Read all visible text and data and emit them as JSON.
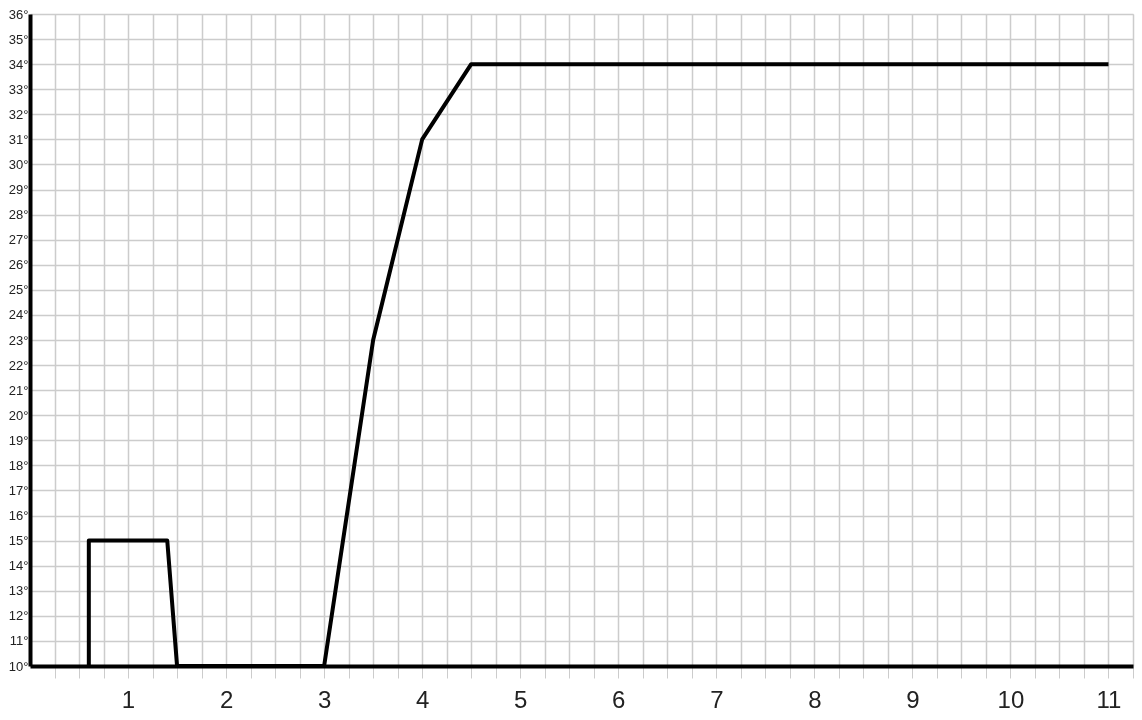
{
  "chart_data": {
    "type": "line",
    "x": [
      0.6,
      0.6,
      1.4,
      1.5,
      3,
      3.5,
      4,
      4.5,
      11
    ],
    "series": [
      {
        "color": "#000000",
        "values": [
          10,
          15,
          15,
          10,
          10,
          23,
          31,
          34,
          34
        ]
      }
    ],
    "xlim": [
      0,
      11.25
    ],
    "ylim": [
      10,
      36
    ],
    "xticks": [
      {
        "value": 0.25,
        "label": null
      },
      {
        "value": 0.5,
        "label": null
      },
      {
        "value": 0.75,
        "label": null
      },
      1,
      {
        "value": 1.25,
        "label": null
      },
      {
        "value": 1.5,
        "label": null
      },
      {
        "value": 1.75,
        "label": null
      },
      2,
      {
        "value": 2.25,
        "label": null
      },
      {
        "value": 2.5,
        "label": null
      },
      {
        "value": 2.75,
        "label": null
      },
      3,
      {
        "value": 3.25,
        "label": null
      },
      {
        "value": 3.5,
        "label": null
      },
      {
        "value": 3.75,
        "label": null
      },
      4,
      {
        "value": 4.25,
        "label": null
      },
      {
        "value": 4.5,
        "label": null
      },
      {
        "value": 4.75,
        "label": null
      },
      5,
      {
        "value": 5.25,
        "label": null
      },
      {
        "value": 5.5,
        "label": null
      },
      {
        "value": 5.75,
        "label": null
      },
      6,
      {
        "value": 6.25,
        "label": null
      },
      {
        "value": 6.5,
        "label": null
      },
      {
        "value": 6.75,
        "label": null
      },
      7,
      {
        "value": 7.25,
        "label": null
      },
      {
        "value": 7.5,
        "label": null
      },
      {
        "value": 7.75,
        "label": null
      },
      8,
      {
        "value": 8.25,
        "label": null
      },
      {
        "value": 8.5,
        "label": null
      },
      {
        "value": 8.75,
        "label": null
      },
      9,
      {
        "value": 9.25,
        "label": null
      },
      {
        "value": 9.5,
        "label": null
      },
      {
        "value": 9.75,
        "label": null
      },
      10,
      {
        "value": 10.25,
        "label": null
      },
      {
        "value": 10.5,
        "label": null
      },
      {
        "value": 10.75,
        "label": null
      },
      11,
      {
        "value": 11.25,
        "label": null
      }
    ],
    "yticks": [
      {
        "value": 10,
        "label": "10°"
      },
      {
        "value": 11,
        "label": "11°"
      },
      {
        "value": 12,
        "label": "12°"
      },
      {
        "value": 13,
        "label": "13°"
      },
      {
        "value": 14,
        "label": "14°"
      },
      {
        "value": 15,
        "label": "15°"
      },
      {
        "value": 16,
        "label": "16°"
      },
      {
        "value": 17,
        "label": "17°"
      },
      {
        "value": 18,
        "label": "18°"
      },
      {
        "value": 19,
        "label": "19°"
      },
      {
        "value": 20,
        "label": "20°"
      },
      {
        "value": 21,
        "label": "21°"
      },
      {
        "value": 22,
        "label": "22°"
      },
      {
        "value": 23,
        "label": "23°"
      },
      {
        "value": 24,
        "label": "24°"
      },
      {
        "value": 25,
        "label": "25°"
      },
      {
        "value": 26,
        "label": "26°"
      },
      {
        "value": 27,
        "label": "27°"
      },
      {
        "value": 28,
        "label": "28°"
      },
      {
        "value": 29,
        "label": "29°"
      },
      {
        "value": 30,
        "label": "30°"
      },
      {
        "value": 31,
        "label": "31°"
      },
      {
        "value": 32,
        "label": "32°"
      },
      {
        "value": 33,
        "label": "33°"
      },
      {
        "value": 34,
        "label": "34°"
      },
      {
        "value": 35,
        "label": "35°"
      },
      {
        "value": 36,
        "label": "36°"
      }
    ],
    "grid": true,
    "marker": "none",
    "line_style": "solid"
  }
}
